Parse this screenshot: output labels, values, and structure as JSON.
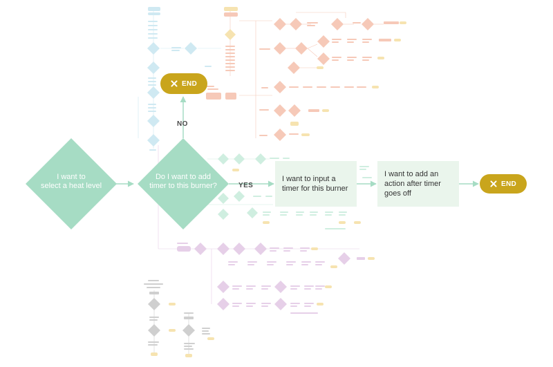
{
  "colors": {
    "main_diamond": "#a6dcc4",
    "main_box": "#eaf5ec",
    "end_pill": "#c9a51c",
    "faint_blue": "#cfe9f2",
    "faint_orange": "#f6c9b8",
    "faint_yellow": "#f6e3b0",
    "faint_green": "#cfeee0",
    "faint_purple": "#e6cfe8",
    "faint_gray": "#cfcfcf"
  },
  "nodes": {
    "select_heat_level": "I want to\nselect a heat level",
    "add_timer_question": "Do I want to add\ntimer to this burner?",
    "input_timer": "I want to input a\ntimer for this burner",
    "action_after_timer": "I want to add an\naction after timer\ngoes off"
  },
  "edges": {
    "no_label": "NO",
    "yes_label": "YES"
  },
  "end_nodes": {
    "top_end_label": "END",
    "right_end_label": "END",
    "icon": "close-icon"
  }
}
